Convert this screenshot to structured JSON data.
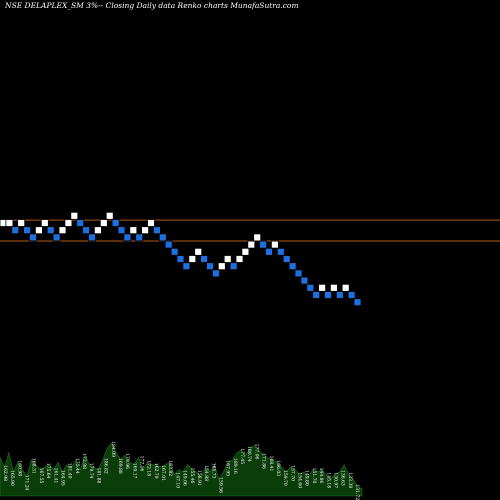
{
  "title": "NSE DELAPLEX_SM 3%--  Closing Daily data  Renko  charts MunafaSutra.com",
  "colors": {
    "background": "#000000",
    "up_brick": "#ffffff",
    "down_brick": "#1e6fe0",
    "brick_outline": "#000000",
    "level_line": "#b35a17",
    "volume_fill": "#0a3d0a",
    "volume_stroke": "#1f7a1f",
    "label_color": "#ffffff"
  },
  "chart_data": {
    "type": "renko",
    "title": "NSE DELAPLEX_SM 3%--  Closing Daily data  Renko  charts MunafaSutra.com",
    "brick_size_note": "3%",
    "ylim": [
      -12,
      3
    ],
    "reference_lines": [
      0.4,
      -2.5
    ],
    "bricks": [
      {
        "dir": "up",
        "level": 0
      },
      {
        "dir": "up",
        "level": 0
      },
      {
        "dir": "down",
        "level": -1
      },
      {
        "dir": "up",
        "level": 0
      },
      {
        "dir": "down",
        "level": -1
      },
      {
        "dir": "down",
        "level": -2
      },
      {
        "dir": "up",
        "level": -1
      },
      {
        "dir": "up",
        "level": 0
      },
      {
        "dir": "down",
        "level": -1
      },
      {
        "dir": "down",
        "level": -2
      },
      {
        "dir": "up",
        "level": -1
      },
      {
        "dir": "up",
        "level": 0
      },
      {
        "dir": "up",
        "level": 1
      },
      {
        "dir": "down",
        "level": 0
      },
      {
        "dir": "down",
        "level": -1
      },
      {
        "dir": "down",
        "level": -2
      },
      {
        "dir": "up",
        "level": -1
      },
      {
        "dir": "up",
        "level": 0
      },
      {
        "dir": "up",
        "level": 1
      },
      {
        "dir": "down",
        "level": 0
      },
      {
        "dir": "down",
        "level": -1
      },
      {
        "dir": "down",
        "level": -2
      },
      {
        "dir": "up",
        "level": -1
      },
      {
        "dir": "down",
        "level": -2
      },
      {
        "dir": "up",
        "level": -1
      },
      {
        "dir": "up",
        "level": 0
      },
      {
        "dir": "down",
        "level": -1
      },
      {
        "dir": "down",
        "level": -2
      },
      {
        "dir": "down",
        "level": -3
      },
      {
        "dir": "down",
        "level": -4
      },
      {
        "dir": "down",
        "level": -5
      },
      {
        "dir": "down",
        "level": -6
      },
      {
        "dir": "up",
        "level": -5
      },
      {
        "dir": "up",
        "level": -4
      },
      {
        "dir": "down",
        "level": -5
      },
      {
        "dir": "down",
        "level": -6
      },
      {
        "dir": "down",
        "level": -7
      },
      {
        "dir": "up",
        "level": -6
      },
      {
        "dir": "up",
        "level": -5
      },
      {
        "dir": "down",
        "level": -6
      },
      {
        "dir": "up",
        "level": -5
      },
      {
        "dir": "up",
        "level": -4
      },
      {
        "dir": "up",
        "level": -3
      },
      {
        "dir": "up",
        "level": -2
      },
      {
        "dir": "down",
        "level": -3
      },
      {
        "dir": "down",
        "level": -4
      },
      {
        "dir": "up",
        "level": -3
      },
      {
        "dir": "down",
        "level": -4
      },
      {
        "dir": "down",
        "level": -5
      },
      {
        "dir": "down",
        "level": -6
      },
      {
        "dir": "down",
        "level": -7
      },
      {
        "dir": "down",
        "level": -8
      },
      {
        "dir": "down",
        "level": -9
      },
      {
        "dir": "down",
        "level": -10
      },
      {
        "dir": "up",
        "level": -9
      },
      {
        "dir": "down",
        "level": -10
      },
      {
        "dir": "up",
        "level": -9
      },
      {
        "dir": "down",
        "level": -10
      },
      {
        "dir": "up",
        "level": -9
      },
      {
        "dir": "down",
        "level": -10
      },
      {
        "dir": "down",
        "level": -11
      }
    ],
    "volume_profile": [
      32,
      24,
      36,
      20,
      28,
      22,
      16,
      30,
      26,
      22,
      24,
      26,
      22,
      28,
      20,
      26,
      24,
      30,
      22,
      34,
      26,
      24,
      22,
      30,
      40,
      44,
      36,
      30,
      34,
      28,
      26,
      32,
      22,
      28,
      26,
      26,
      24,
      26,
      28,
      18,
      22,
      20,
      26,
      22,
      20,
      16,
      24,
      20,
      26,
      14,
      20,
      28,
      30,
      36,
      38,
      34,
      40,
      42,
      38,
      34,
      32,
      30,
      28,
      24,
      20,
      24,
      22,
      18,
      20,
      16,
      22,
      20,
      22,
      18,
      14,
      18,
      20,
      26,
      18,
      14,
      8,
      6
    ],
    "bottom_labels": [
      "162.98",
      "165.90",
      "160.98",
      "171.24",
      "168.31",
      "167.55",
      "175.64",
      "161.41",
      "164.95",
      "181.40",
      "175.44",
      "173.98",
      "179.74",
      "181.88",
      "186.82",
      "184.09",
      "169.88",
      "179.96",
      "169.17",
      "177.16",
      "172.18",
      "162.79",
      "167.01",
      "163.82",
      "147.10",
      "149.06",
      "155.46",
      "158.91",
      "154.88",
      "165.73",
      "159.56",
      "167.95",
      "189.16",
      "177.45",
      "180.74",
      "177.06",
      "171.86",
      "168.41",
      "166.03",
      "159.70",
      "157.70",
      "154.60",
      "149.80",
      "151.70",
      "144.86",
      "145.18",
      "130.97",
      "136.63",
      "133.38",
      "131.72"
    ]
  }
}
